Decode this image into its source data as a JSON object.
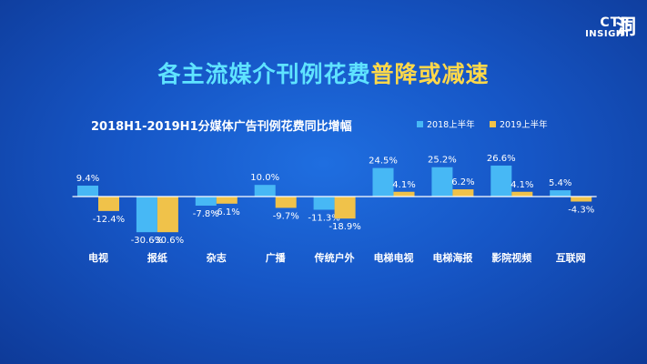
{
  "brand": {
    "line1": "CTR",
    "line2": "INSIGHT",
    "glyph": "洞"
  },
  "headline": {
    "part1": "各主流媒介刊例花费",
    "part2": "普降或减速"
  },
  "chart_data": {
    "type": "bar",
    "title": "2018H1-2019H1分媒体广告刊例花费同比增幅",
    "legend_position": "top-right",
    "unit": "%",
    "categories": [
      "电视",
      "报纸",
      "杂志",
      "广播",
      "传统户外",
      "电梯电视",
      "电梯海报",
      "影院视频",
      "互联网"
    ],
    "series": [
      {
        "name": "2018上半年",
        "color": "#47b8f5",
        "values": [
          9.4,
          -30.6,
          -7.8,
          10.0,
          -11.3,
          24.5,
          25.2,
          26.6,
          5.4
        ]
      },
      {
        "name": "2019上半年",
        "color": "#f0c24a",
        "values": [
          -12.4,
          -30.6,
          -6.1,
          -9.7,
          -18.9,
          4.1,
          6.2,
          4.1,
          -4.3
        ]
      }
    ]
  }
}
